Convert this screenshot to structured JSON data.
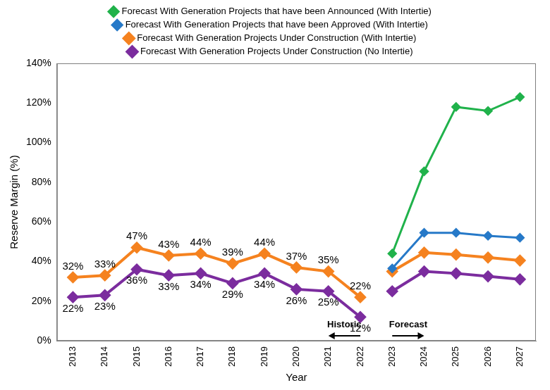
{
  "chart_data": {
    "type": "line",
    "categories": [
      "2013",
      "2014",
      "2015",
      "2016",
      "2017",
      "2018",
      "2019",
      "2020",
      "2021",
      "2022",
      "2023",
      "2024",
      "2025",
      "2026",
      "2027"
    ],
    "xlabel": "Year",
    "ylabel": "Reserve Margin (%)",
    "ylim": [
      0,
      140
    ],
    "yticks": [
      {
        "value": 0,
        "label": "0%"
      },
      {
        "value": 20,
        "label": "20%"
      },
      {
        "value": 40,
        "label": "40%"
      },
      {
        "value": 60,
        "label": "60%"
      },
      {
        "value": 80,
        "label": "80%"
      },
      {
        "value": 100,
        "label": "100%"
      },
      {
        "value": 120,
        "label": "120%"
      },
      {
        "value": 140,
        "label": "140%"
      }
    ],
    "grid": false,
    "legend": "top",
    "series": [
      {
        "name": "Forecast With Generation Projects that have been Announced (With Intertie)",
        "color": "#20b24b",
        "marker": "diamond",
        "values": [
          null,
          null,
          null,
          null,
          null,
          null,
          null,
          null,
          null,
          null,
          44,
          85.5,
          118,
          116,
          123
        ]
      },
      {
        "name": "Forecast With Generation Projects that have been Approved (With Intertie)",
        "color": "#2679c8",
        "marker": "diamond",
        "values": [
          null,
          null,
          null,
          null,
          null,
          null,
          null,
          null,
          null,
          null,
          36.5,
          54.5,
          54.5,
          53,
          52
        ]
      },
      {
        "name": "Forecast With Generation Projects Under Construction (With Intertie)",
        "color": "#f5821f",
        "marker": "diamond",
        "values": [
          32,
          33,
          47,
          43,
          44,
          39,
          44,
          37,
          35,
          22,
          35,
          44.5,
          43.5,
          42,
          40.5
        ],
        "value_labels": [
          "32%",
          "33%",
          "47%",
          "43%",
          "44%",
          "39%",
          "44%",
          "37%",
          "35%",
          "22%",
          null,
          null,
          null,
          null,
          null
        ]
      },
      {
        "name": "Forecast With Generation Projects Under Construction (No Intertie)",
        "color": "#7b2c9e",
        "marker": "diamond",
        "values": [
          22,
          23,
          36,
          33,
          34,
          29,
          34,
          26,
          25,
          12,
          25,
          35,
          34,
          32.5,
          31
        ],
        "value_labels": [
          "22%",
          "23%",
          "36%",
          "33%",
          "34%",
          "29%",
          "34%",
          "26%",
          "25%",
          "12%",
          null,
          null,
          null,
          null,
          null
        ]
      }
    ],
    "annotations": [
      {
        "text": "Historic",
        "from": "2022",
        "to": "2021"
      },
      {
        "text": "Forecast",
        "from": "2023",
        "to": "2024"
      }
    ]
  }
}
